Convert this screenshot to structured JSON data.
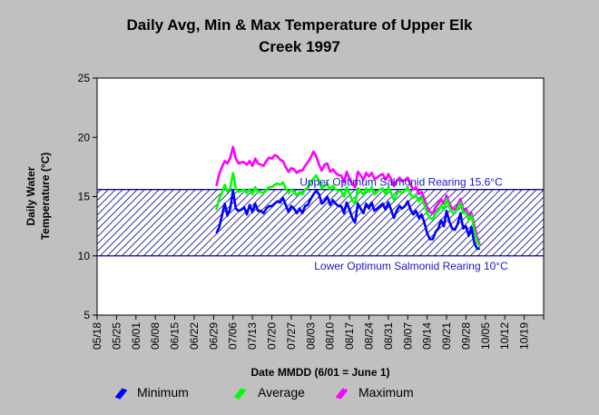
{
  "chart_data": {
    "type": "line",
    "title_line1": "Daily Avg, Min & Max Temperature of Upper Elk",
    "title_line2": "Creek 1997",
    "xlabel": "Date MMDD (6/01 = June 1)",
    "ylabel_line1": "Daily Water",
    "ylabel_line2": "Temperature (°C)",
    "ylim": [
      5,
      25
    ],
    "yticks": [
      5,
      10,
      15,
      20,
      25
    ],
    "x_tick_labels": [
      "05/18",
      "05/25",
      "06/01",
      "06/08",
      "06/15",
      "06/22",
      "06/29",
      "07/06",
      "07/13",
      "07/20",
      "07/27",
      "08/03",
      "08/10",
      "08/17",
      "08/24",
      "08/31",
      "09/07",
      "09/14",
      "09/21",
      "09/28",
      "10/05",
      "10/12",
      "10/19"
    ],
    "x_start_label": "05/18",
    "x_end_label": "10/26",
    "grid": false,
    "legend_position": "bottom",
    "reference_lines": [
      {
        "label": "Upper Optimum Salmonid Rearing 15.6°C",
        "value": 15.6
      },
      {
        "label": "Lower Optimum Salmonid Rearing 10°C",
        "value": 10
      }
    ],
    "series_start_date": "06/30",
    "series": [
      {
        "name": "Minimum",
        "color": "#0000ff",
        "values": [
          11.9,
          12.4,
          13.4,
          14.4,
          13.4,
          14.0,
          15.5,
          14.0,
          13.8,
          13.9,
          14.1,
          13.5,
          14.3,
          13.7,
          14.4,
          13.8,
          13.8,
          13.6,
          14.0,
          14.2,
          14.2,
          14.4,
          14.6,
          14.5,
          14.9,
          14.3,
          13.7,
          14.2,
          14.0,
          13.6,
          14.0,
          13.6,
          14.2,
          14.3,
          14.8,
          15.2,
          15.5,
          15.2,
          14.4,
          14.6,
          15.0,
          14.3,
          14.7,
          14.4,
          14.2,
          14.2,
          13.6,
          14.5,
          13.9,
          13.2,
          12.8,
          14.4,
          14.0,
          13.6,
          14.4,
          14.0,
          14.5,
          13.8,
          14.0,
          14.2,
          14.4,
          13.9,
          14.5,
          13.9,
          13.2,
          13.8,
          14.2,
          14.0,
          14.2,
          14.6,
          13.9,
          13.5,
          13.8,
          13.2,
          13.5,
          12.8,
          11.9,
          11.4,
          11.4,
          12.0,
          12.3,
          13.0,
          12.5,
          13.8,
          12.9,
          12.3,
          12.2,
          12.7,
          13.6,
          12.3,
          12.5,
          11.7,
          12.4,
          11.1,
          10.6,
          10.6
        ]
      },
      {
        "name": "Average",
        "color": "#00ff00",
        "values": [
          13.9,
          14.8,
          15.3,
          16.0,
          15.4,
          15.7,
          17.0,
          15.7,
          15.4,
          15.5,
          15.6,
          15.3,
          15.6,
          15.2,
          15.8,
          15.4,
          15.4,
          15.3,
          15.6,
          15.8,
          15.8,
          16.0,
          16.1,
          16.0,
          16.2,
          15.7,
          15.3,
          15.6,
          15.4,
          15.1,
          15.4,
          15.2,
          15.6,
          15.8,
          16.2,
          16.5,
          16.8,
          16.3,
          15.7,
          15.9,
          16.1,
          15.6,
          15.9,
          15.6,
          15.5,
          15.5,
          15.0,
          15.8,
          15.2,
          14.7,
          14.4,
          15.7,
          15.5,
          15.1,
          15.7,
          15.4,
          15.8,
          15.2,
          15.4,
          15.6,
          15.7,
          15.2,
          15.8,
          15.3,
          14.7,
          15.2,
          15.5,
          15.3,
          15.5,
          15.8,
          15.2,
          14.9,
          15.1,
          14.6,
          14.9,
          14.3,
          13.6,
          13.2,
          13.1,
          13.6,
          13.8,
          14.3,
          13.9,
          14.8,
          14.1,
          13.7,
          13.6,
          14.0,
          14.5,
          13.6,
          13.7,
          13.0,
          13.4,
          12.1,
          11.2,
          10.8
        ]
      },
      {
        "name": "Maximum",
        "color": "#ff00ff",
        "values": [
          15.9,
          16.9,
          17.5,
          18.0,
          17.8,
          18.3,
          19.2,
          18.2,
          17.8,
          17.9,
          17.9,
          17.7,
          18.0,
          17.6,
          18.2,
          17.8,
          17.7,
          17.6,
          18.0,
          18.3,
          18.2,
          18.5,
          18.4,
          18.1,
          18.0,
          17.5,
          17.1,
          17.4,
          17.3,
          17.0,
          17.2,
          17.2,
          17.6,
          17.9,
          18.3,
          18.8,
          18.4,
          17.7,
          17.2,
          17.7,
          17.8,
          17.1,
          17.3,
          17.0,
          16.8,
          16.8,
          16.2,
          17.1,
          16.5,
          16.1,
          15.8,
          17.1,
          16.8,
          16.4,
          17.0,
          16.7,
          17.0,
          16.5,
          16.6,
          16.8,
          16.9,
          16.4,
          16.9,
          16.5,
          15.9,
          16.3,
          16.6,
          16.3,
          16.4,
          16.6,
          16.0,
          15.6,
          15.8,
          15.2,
          15.4,
          14.8,
          14.1,
          13.7,
          13.6,
          14.1,
          14.4,
          14.8,
          14.4,
          15.1,
          14.4,
          14.0,
          13.9,
          14.3,
          14.8,
          13.9,
          14.0,
          13.4,
          13.6,
          12.6,
          11.6,
          10.9
        ]
      }
    ]
  }
}
